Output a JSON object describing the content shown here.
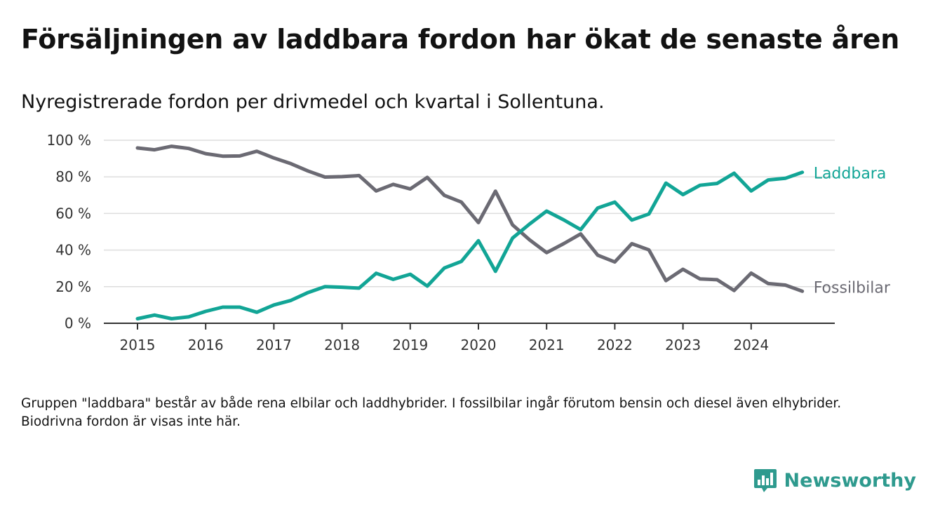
{
  "title": "Försäljningen av laddbara fordon har ökat de senaste åren",
  "subtitle": "Nyregistrerade fordon per drivmedel och kvartal i Sollentuna.",
  "note": "Gruppen \"laddbara\" består av både rena elbilar och laddhybrider. I fossilbilar ingår förutom bensin och diesel även elhybrider. Biodrivna fordon är visas inte här.",
  "brand": "Newsworthy",
  "colors": {
    "laddbara": "#12a596",
    "fossil": "#6b6a73",
    "grid": "#dddddd",
    "axis": "#333333",
    "brand": "#2e9a8e"
  },
  "chart_data": {
    "type": "line",
    "title": "Försäljningen av laddbara fordon har ökat de senaste åren",
    "xlabel": "",
    "ylabel": "",
    "ylim": [
      0,
      100
    ],
    "yticks": [
      0,
      20,
      40,
      60,
      80,
      100
    ],
    "ytick_labels": [
      "0 %",
      "20 %",
      "40 %",
      "60 %",
      "80 %",
      "100 %"
    ],
    "xlim": [
      2014.5,
      2025.2
    ],
    "xticks": [
      2015,
      2016,
      2017,
      2018,
      2019,
      2020,
      2021,
      2022,
      2023,
      2024
    ],
    "xtick_labels": [
      "2015",
      "2016",
      "2017",
      "2018",
      "2019",
      "2020",
      "2021",
      "2022",
      "2023",
      "2024"
    ],
    "x": [
      2015.0,
      2015.25,
      2015.5,
      2015.75,
      2016.0,
      2016.25,
      2016.5,
      2016.75,
      2017.0,
      2017.25,
      2017.5,
      2017.75,
      2018.0,
      2018.25,
      2018.5,
      2018.75,
      2019.0,
      2019.25,
      2019.5,
      2019.75,
      2020.0,
      2020.25,
      2020.5,
      2020.75,
      2021.0,
      2021.25,
      2021.5,
      2021.75,
      2022.0,
      2022.25,
      2022.5,
      2022.75,
      2023.0,
      2023.25,
      2023.5,
      2023.75,
      2024.0,
      2024.25,
      2024.5,
      2024.75
    ],
    "series": [
      {
        "name": "Laddbara",
        "values": [
          2.5,
          4.5,
          2.5,
          3.5,
          6.5,
          8.8,
          8.8,
          6,
          10,
          12.5,
          16.8,
          20,
          19.7,
          19.2,
          27.3,
          24,
          26.8,
          20.3,
          30.2,
          33.8,
          45.1,
          28.4,
          46.5,
          54.2,
          61.3,
          56.5,
          51.2,
          63,
          66.2,
          56.4,
          59.7,
          76.6,
          70.3,
          75.4,
          76.4,
          82,
          72.3,
          78.3,
          79.2,
          82.5
        ]
      },
      {
        "name": "Fossilbilar",
        "values": [
          95.8,
          94.8,
          96.7,
          95.5,
          92.7,
          91.3,
          91.4,
          94,
          90.3,
          87.2,
          83.2,
          79.9,
          80.1,
          80.7,
          72.3,
          75.9,
          73.4,
          79.7,
          69.9,
          66.2,
          55,
          72.2,
          53.8,
          45.6,
          38.6,
          43.5,
          48.8,
          37.2,
          33.5,
          43.5,
          40.1,
          23.3,
          29.5,
          24.2,
          23.8,
          17.9,
          27.4,
          21.7,
          20.9,
          17.5
        ]
      }
    ]
  }
}
